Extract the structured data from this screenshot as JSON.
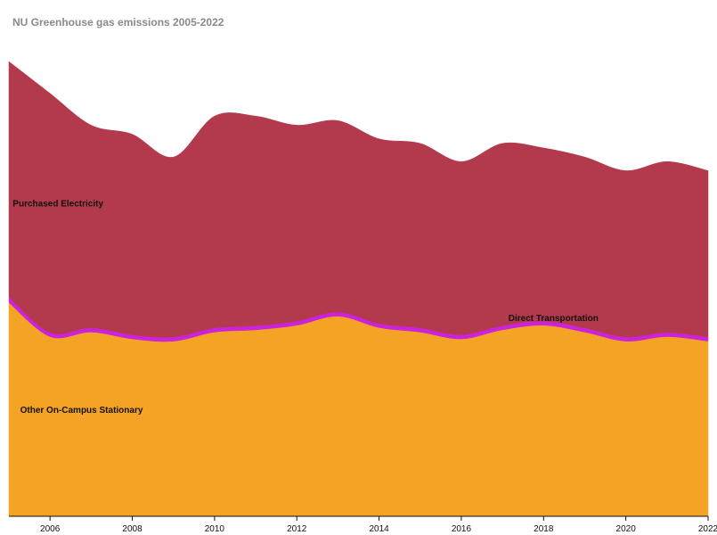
{
  "chart_data": {
    "type": "area",
    "title": "NU Greenhouse gas emissions 2005-2022",
    "x": [
      2005,
      2006,
      2007,
      2008,
      2009,
      2010,
      2011,
      2012,
      2013,
      2014,
      2015,
      2016,
      2017,
      2018,
      2019,
      2020,
      2021,
      2022
    ],
    "xticks": [
      2006,
      2008,
      2010,
      2012,
      2014,
      2016,
      2018,
      2020,
      2022
    ],
    "ylim": [
      0,
      100
    ],
    "series": [
      {
        "name": "Other On-Campus Stationary",
        "color": "#f4a324",
        "values": [
          47,
          39.5,
          40.5,
          39,
          38.5,
          40.5,
          41,
          42,
          44,
          41.5,
          40.5,
          39,
          41,
          42,
          40.5,
          38.5,
          39.5,
          38.5
        ]
      },
      {
        "name": "Direct Transportation",
        "color": "#cc22dd",
        "values": [
          1.2,
          0.9,
          0.9,
          0.9,
          0.9,
          0.9,
          0.9,
          0.9,
          0.9,
          0.9,
          0.9,
          0.9,
          0.9,
          0.9,
          0.9,
          0.9,
          0.9,
          0.9
        ]
      },
      {
        "name": "Purchased Electricity",
        "color": "#b33a4c",
        "values": [
          51.8,
          52.6,
          44.6,
          44.1,
          39.6,
          46.6,
          46.1,
          43.1,
          42.1,
          40.6,
          40.6,
          38.1,
          40.1,
          38.1,
          37.6,
          36.6,
          37.6,
          36.6
        ]
      }
    ]
  }
}
